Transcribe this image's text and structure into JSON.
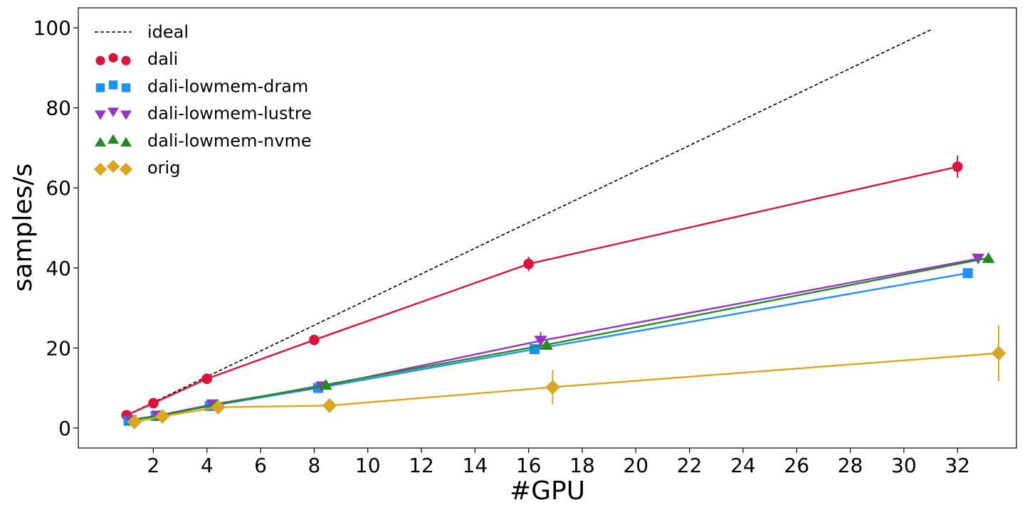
{
  "chart_data": {
    "type": "line",
    "xlabel": "#GPU",
    "ylabel": "samples/s",
    "xlim": [
      -0.8,
      34.2
    ],
    "ylim": [
      -5,
      105
    ],
    "xticks": [
      2,
      4,
      6,
      8,
      10,
      12,
      14,
      16,
      18,
      20,
      22,
      24,
      26,
      28,
      30,
      32
    ],
    "yticks": [
      0,
      20,
      40,
      60,
      80,
      100
    ],
    "grid": false,
    "legend_position": "top-left",
    "series": [
      {
        "name": "ideal",
        "style": "dashed",
        "color": "#000000",
        "marker": "none",
        "x": [
          1,
          31
        ],
        "y": [
          3.2,
          99.5
        ]
      },
      {
        "name": "dali",
        "color": "#DC143C",
        "marker": "circle",
        "x": [
          1,
          2,
          4,
          8,
          16,
          32
        ],
        "y": [
          3.2,
          6.2,
          12.3,
          22.0,
          41.0,
          65.3
        ],
        "err": [
          0.3,
          0.4,
          0.5,
          0.6,
          1.8,
          2.8
        ]
      },
      {
        "name": "dali-lowmem-dram",
        "color": "#1E90FF",
        "marker": "square",
        "x": [
          1,
          2,
          4,
          8,
          16,
          32
        ],
        "y": [
          1.8,
          3.0,
          5.5,
          10.0,
          19.7,
          38.7
        ],
        "err": [
          0,
          0,
          0,
          0,
          0,
          0
        ]
      },
      {
        "name": "dali-lowmem-lustre",
        "color": "#9932CC",
        "marker": "triangle-down",
        "x": [
          1,
          2,
          4,
          8,
          16,
          32
        ],
        "y": [
          2.0,
          3.1,
          5.9,
          10.4,
          21.8,
          42.3
        ],
        "err": [
          0,
          0,
          0,
          0,
          2.2,
          0
        ]
      },
      {
        "name": "dali-lowmem-nvme",
        "color": "#228B22",
        "marker": "triangle-up",
        "x": [
          1,
          2,
          4,
          8,
          16,
          32
        ],
        "y": [
          2.0,
          3.1,
          5.8,
          10.8,
          20.8,
          42.5
        ],
        "err": [
          0,
          0,
          0,
          0,
          0,
          0
        ]
      },
      {
        "name": "orig",
        "color": "#DAA520",
        "marker": "diamond",
        "x": [
          1,
          2,
          4,
          8,
          16,
          32
        ],
        "y": [
          1.5,
          2.9,
          5.2,
          5.6,
          10.2,
          18.7
        ],
        "err": [
          0,
          0,
          0,
          0,
          4.3,
          7.0
        ]
      }
    ]
  }
}
